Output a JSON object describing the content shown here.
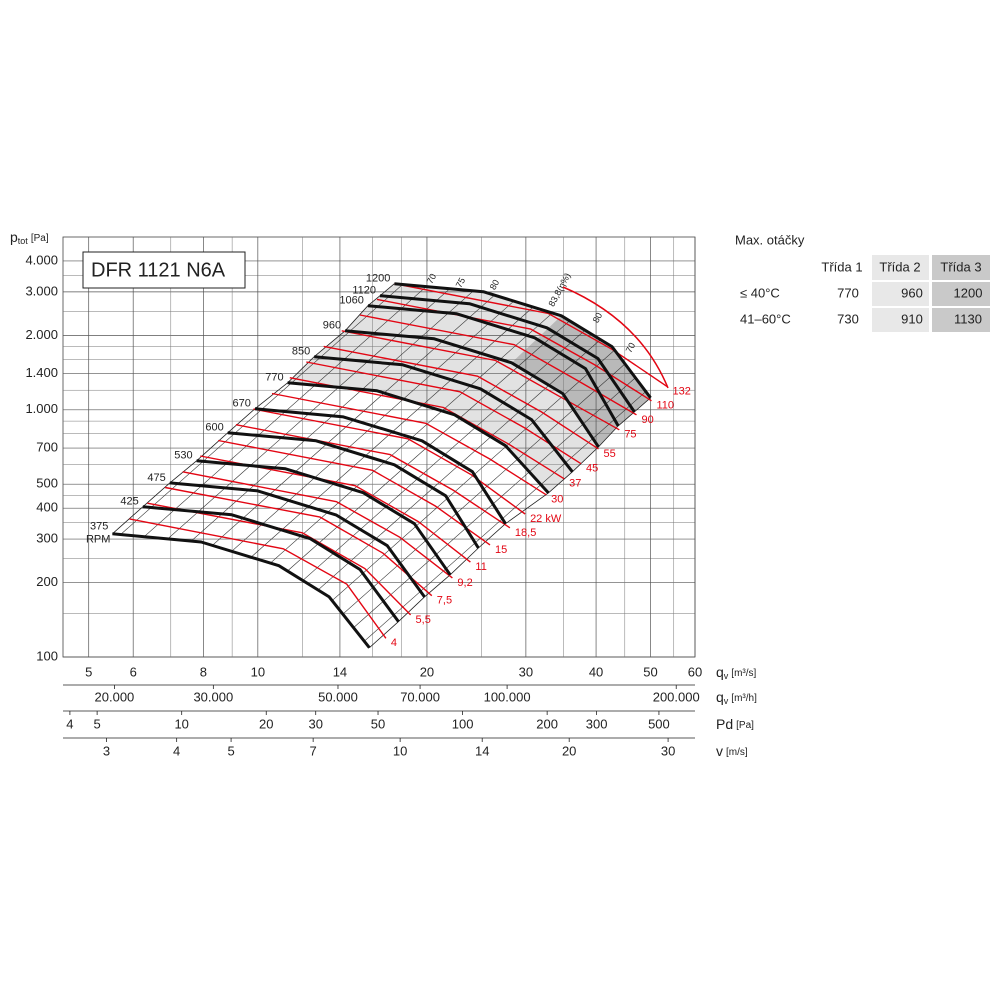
{
  "chart_data": {
    "type": "line",
    "title": "DFR 1121 N6A",
    "x_label": {
      "symbol": "q",
      "sub": "v",
      "unit": "[m³/s]"
    },
    "y_label": {
      "symbol": "p",
      "sub": "tot",
      "unit": "[Pa]"
    },
    "log_x": true,
    "log_y": true,
    "grid": true,
    "xlim": [
      4.5,
      60
    ],
    "ylim": [
      100,
      5000
    ],
    "xticks": [
      5,
      6,
      8,
      10,
      14,
      20,
      30,
      40,
      50,
      60
    ],
    "x_minor_grid": [
      7,
      9,
      12,
      16,
      18,
      25,
      35,
      45,
      55
    ],
    "yticks": [
      100,
      200,
      300,
      400,
      500,
      700,
      {
        "value": 1000,
        "label": "1.000"
      },
      {
        "value": 1400,
        "label": "1.400"
      },
      {
        "value": 2000,
        "label": "2.000"
      },
      {
        "value": 3000,
        "label": "3.000"
      },
      {
        "value": 4000,
        "label": "4.000"
      }
    ],
    "y_minor_grid": [
      150,
      250,
      350,
      450,
      600,
      800,
      900,
      1200,
      1600,
      1800,
      2500,
      3500
    ],
    "rpm_unit": "RPM",
    "shade_light": "#e2e2e2",
    "shade_dark": "#b9b9b9",
    "series": [
      {
        "name": "375",
        "color": "#111111",
        "x": [
          5.51,
          7.93,
          10.9,
          13.4,
          15.8
        ],
        "values": [
          315,
          292,
          234,
          175,
          109
        ]
      },
      {
        "name": "425",
        "color": "#111111",
        "x": [
          6.24,
          8.99,
          12.4,
          15.2,
          17.8
        ],
        "values": [
          405,
          376,
          301,
          226,
          139
        ]
      },
      {
        "name": "475",
        "color": "#111111",
        "x": [
          6.97,
          10.0,
          13.8,
          17.0,
          19.8
        ],
        "values": [
          506,
          470,
          375,
          282,
          175
        ]
      },
      {
        "name": "530",
        "color": "#111111",
        "x": [
          7.78,
          11.2,
          15.4,
          19.0,
          22.0
        ],
        "values": [
          622,
          577,
          462,
          346,
          215
        ]
      },
      {
        "name": "600",
        "color": "#111111",
        "x": [
          8.84,
          12.7,
          17.5,
          21.6,
          24.7
        ],
        "values": [
          807,
          749,
          599,
          449,
          276
        ]
      },
      {
        "name": "670",
        "color": "#111111",
        "x": [
          9.88,
          14.2,
          19.6,
          24.1,
          27.6
        ],
        "values": [
          1009,
          936,
          749,
          562,
          346
        ]
      },
      {
        "name": "770",
        "color": "#111111",
        "x": [
          11.3,
          16.3,
          22.4,
          27.6,
          32.9
        ],
        "values": [
          1286,
          1193,
          954,
          716,
          461
        ]
      },
      {
        "name": "850",
        "color": "#111111",
        "x": [
          12.6,
          18.1,
          24.9,
          30.7,
          36.3
        ],
        "values": [
          1639,
          1521,
          1216,
          913,
          561
        ]
      },
      {
        "name": "960",
        "color": "#111111",
        "x": [
          14.3,
          20.6,
          28.3,
          34.9,
          40.4
        ],
        "values": [
          2088,
          1938,
          1549,
          1163,
          708
        ]
      },
      {
        "name": "1060",
        "color": "#111111",
        "x": [
          15.7,
          22.6,
          31.1,
          38.3,
          43.8
        ],
        "values": [
          2636,
          2446,
          1956,
          1468,
          861
        ]
      },
      {
        "name": "1120",
        "color": "#111111",
        "x": [
          16.5,
          23.8,
          32.7,
          40.3,
          46.8
        ],
        "values": [
          2894,
          2686,
          2147,
          1612,
          981
        ]
      },
      {
        "name": "1200",
        "color": "#111111",
        "x": [
          17.5,
          25.2,
          34.7,
          42.7,
          50.0
        ],
        "values": [
          3236,
          3003,
          2401,
          1802,
          1118
        ]
      }
    ],
    "power_lines": {
      "color": "#e30613",
      "lines": [
        {
          "name": "4",
          "x": [
            5.91,
            11.1,
            14.4,
            16.9
          ],
          "values": [
            362,
            274,
            197,
            119
          ]
        },
        {
          "name": "5,5",
          "x": [
            6.36,
            12.0,
            15.5,
            18.7
          ],
          "values": [
            419,
            318,
            228,
            148
          ]
        },
        {
          "name": "7,5",
          "x": [
            6.84,
            12.9,
            16.7,
            20.4
          ],
          "values": [
            485,
            368,
            263,
            177
          ]
        },
        {
          "name": "9,2",
          "x": [
            7.35,
            13.8,
            17.9,
            22.2
          ],
          "values": [
            561,
            425,
            305,
            209
          ]
        },
        {
          "name": "11",
          "x": [
            7.9,
            14.9,
            19.3,
            23.9
          ],
          "values": [
            650,
            493,
            353,
            242
          ]
        },
        {
          "name": "15",
          "x": [
            8.5,
            16.0,
            20.7,
            25.9
          ],
          "values": [
            751,
            569,
            408,
            284
          ]
        },
        {
          "name": "18,5",
          "x": [
            9.14,
            17.2,
            22.3,
            28.1
          ],
          "values": [
            870,
            659,
            472,
            333
          ]
        },
        {
          "name": "22 kW",
          "x": [
            9.82,
            18.5,
            24.0,
            29.9
          ],
          "values": [
            1006,
            763,
            546,
            379
          ]
        },
        {
          "name": "30",
          "x": [
            10.6,
            19.9,
            25.9,
            32.6
          ],
          "values": [
            1164,
            882,
            632,
            453
          ]
        },
        {
          "name": "37",
          "x": [
            11.4,
            21.4,
            27.8,
            35.1
          ],
          "values": [
            1348,
            1022,
            732,
            526
          ]
        },
        {
          "name": "45",
          "x": [
            12.2,
            22.9,
            29.8,
            37.6
          ],
          "values": [
            1560,
            1182,
            847,
            605
          ]
        },
        {
          "name": "55",
          "x": [
            13.1,
            24.6,
            32.0,
            40.4
          ],
          "values": [
            1804,
            1367,
            980,
            695
          ]
        },
        {
          "name": "75",
          "x": [
            14.1,
            26.5,
            34.4,
            44.0
          ],
          "values": [
            2088,
            1583,
            1134,
            830
          ]
        },
        {
          "name": "90",
          "x": [
            15.2,
            28.6,
            37.1,
            47.2
          ],
          "values": [
            2418,
            1833,
            1313,
            954
          ]
        },
        {
          "name": "110",
          "x": [
            16.3,
            30.6,
            39.8,
            50.2
          ],
          "values": [
            2797,
            2120,
            1519,
            1087
          ]
        },
        {
          "name": "132",
          "x": [
            17.5,
            32.9,
            42.7,
            53.6
          ],
          "values": [
            3236,
            2453,
            1757,
            1239
          ]
        }
      ]
    },
    "efficiency_labels": [
      "70",
      "75",
      "80",
      "83,8(η%)",
      "80",
      "70"
    ],
    "secondary_axes": [
      {
        "label": {
          "symbol": "q",
          "sub": "v",
          "unit": "[m³/h]"
        },
        "xlim": [
          16200,
          216000
        ],
        "xticks": [
          {
            "value": 20000,
            "label": "20.000"
          },
          {
            "value": 30000,
            "label": "30.000"
          },
          {
            "value": 50000,
            "label": "50.000"
          },
          {
            "value": 70000,
            "label": "70.000"
          },
          {
            "value": 100000,
            "label": "100.000"
          },
          {
            "value": 200000,
            "label": "200.000"
          }
        ]
      },
      {
        "label": {
          "symbol": "Pd",
          "unit": "[Pa]"
        },
        "xlim": [
          3.78,
          672
        ],
        "xticks": [
          4,
          5,
          10,
          20,
          30,
          50,
          100,
          200,
          300,
          500
        ]
      },
      {
        "label": {
          "symbol": "v",
          "unit": "[m/s]"
        },
        "xlim": [
          2.51,
          33.5
        ],
        "xticks": [
          3,
          4,
          5,
          7,
          10,
          14,
          20,
          30
        ]
      }
    ]
  },
  "side_table": {
    "title": "Max. otáčky",
    "columns": [
      "Třída 1",
      "Třída 2",
      "Třída 3"
    ],
    "rows": [
      {
        "label": "≤ 40°C",
        "cells": [
          770,
          960,
          1200
        ]
      },
      {
        "label": "41–60°C",
        "cells": [
          730,
          910,
          1130
        ]
      }
    ]
  }
}
